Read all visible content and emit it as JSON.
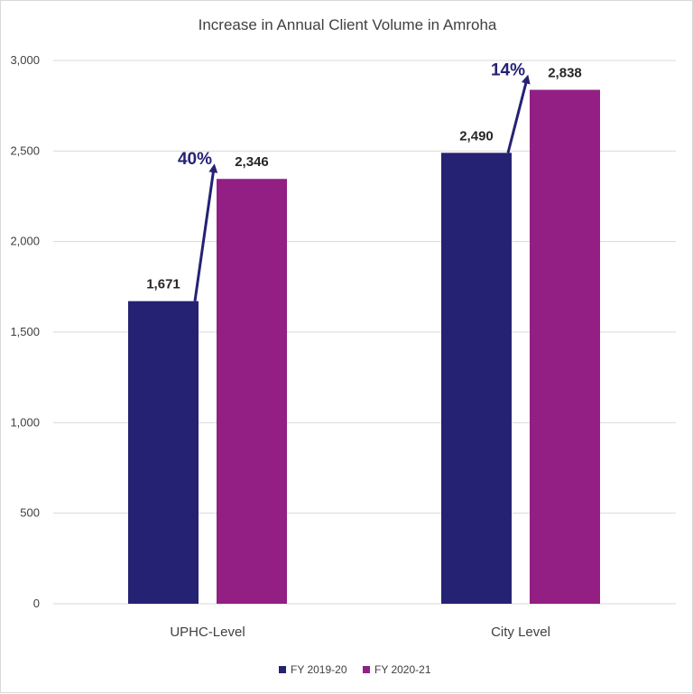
{
  "chart_data": {
    "type": "bar",
    "title": "Increase in Annual Client Volume in Amroha",
    "categories": [
      "UPHC-Level",
      "City Level"
    ],
    "series": [
      {
        "name": "FY 2019-20",
        "values": [
          1671,
          2490
        ],
        "color": "#252274",
        "labels": [
          "1,671",
          "2,490"
        ]
      },
      {
        "name": "FY 2020-21",
        "values": [
          2346,
          2838
        ],
        "color": "#931f84",
        "labels": [
          "2,346",
          "2,838"
        ]
      }
    ],
    "ylim": [
      0,
      3000
    ],
    "yticks": [
      0,
      500,
      1000,
      1500,
      2000,
      2500,
      3000
    ],
    "ytick_labels": [
      "0",
      "500",
      "1,000",
      "1,500",
      "2,000",
      "2,500",
      "3,000"
    ],
    "annotations": [
      "40%",
      "14%"
    ],
    "annotation_color": "#252274",
    "grid": true,
    "legend_position": "bottom"
  }
}
